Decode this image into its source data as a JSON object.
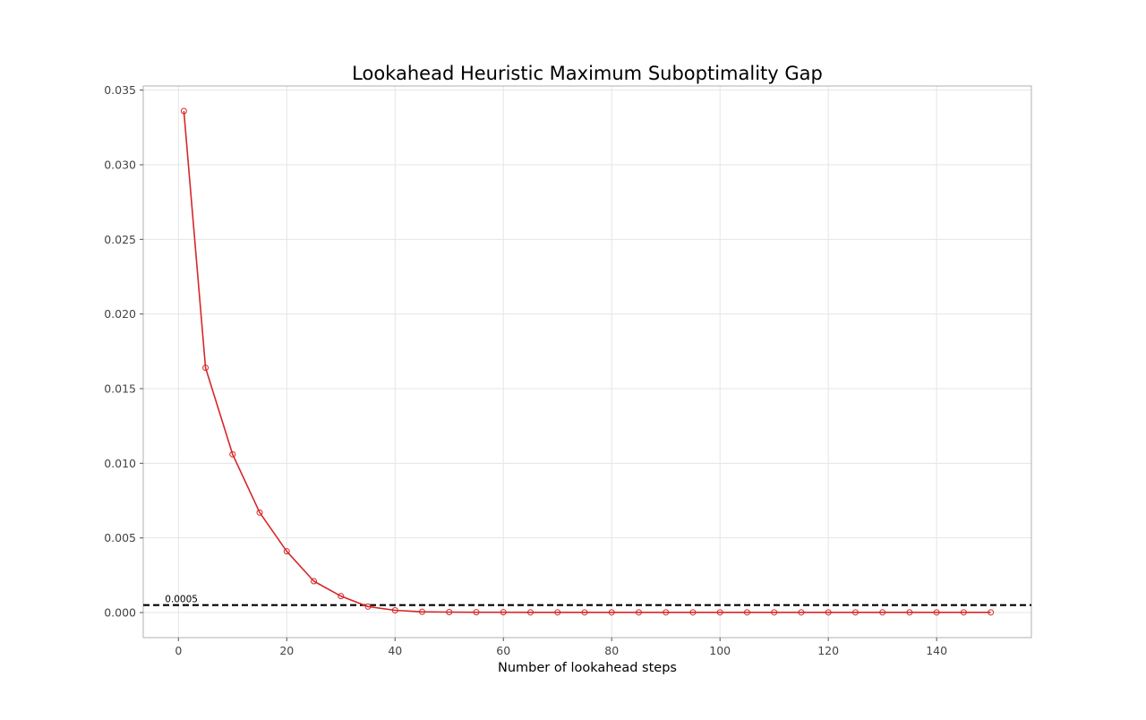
{
  "chart_data": {
    "type": "line",
    "title": "Lookahead Heuristic Maximum Suboptimality Gap",
    "xlabel": "Number of lookahead steps",
    "ylabel": "",
    "xlim": [
      -6.5,
      157.5
    ],
    "ylim": [
      -0.00168,
      0.03528
    ],
    "x_ticks": [
      0,
      20,
      40,
      60,
      80,
      100,
      120,
      140
    ],
    "x_tick_labels": [
      "0",
      "20",
      "40",
      "60",
      "80",
      "100",
      "120",
      "140"
    ],
    "y_ticks": [
      0.0,
      0.005,
      0.01,
      0.015,
      0.02,
      0.025,
      0.03,
      0.035
    ],
    "y_tick_labels": [
      "0.000",
      "0.005",
      "0.010",
      "0.015",
      "0.020",
      "0.025",
      "0.030",
      "0.035"
    ],
    "grid": true,
    "legend": "none",
    "series": [
      {
        "color": "#d62728",
        "marker": "hollow-circle",
        "x": [
          1,
          5,
          10,
          15,
          20,
          25,
          30,
          35,
          40,
          45,
          50,
          55,
          60,
          65,
          70,
          75,
          80,
          85,
          90,
          95,
          100,
          105,
          110,
          115,
          120,
          125,
          130,
          135,
          140,
          145,
          150
        ],
        "y": [
          0.0336,
          0.0164,
          0.0106,
          0.0067,
          0.0041,
          0.0021,
          0.0011,
          0.0004,
          0.00015,
          5e-05,
          3e-05,
          2e-05,
          2e-05,
          1e-05,
          1e-05,
          1e-05,
          1e-05,
          1e-05,
          1e-05,
          1e-05,
          1e-05,
          1e-05,
          1e-05,
          1e-05,
          1e-05,
          1e-05,
          1e-05,
          1e-05,
          1e-05,
          1e-05,
          1e-05
        ]
      }
    ],
    "reference_line": {
      "y": 0.0005,
      "label": "0.0005",
      "style": "dashed",
      "color": "#000000"
    }
  }
}
